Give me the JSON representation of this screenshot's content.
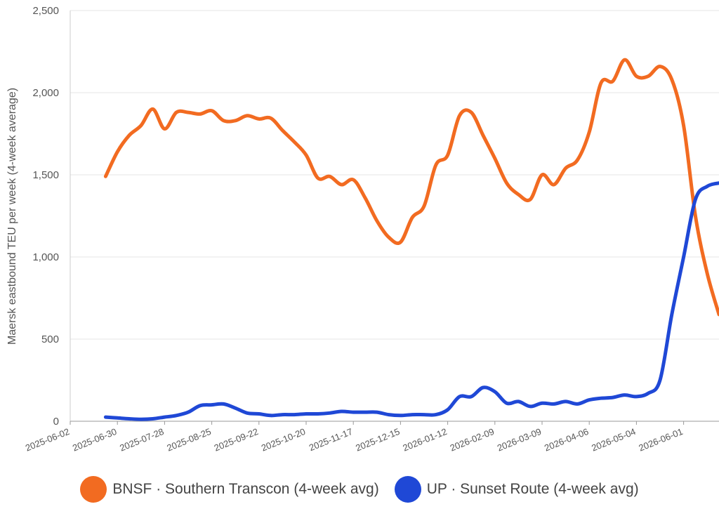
{
  "chart_data": {
    "type": "line",
    "title": "",
    "xlabel": "",
    "ylabel": "Maersk eastbound TEU per week (4-week average)",
    "ylim": [
      0,
      2500
    ],
    "yticks": [
      0,
      500,
      1000,
      1500,
      2000,
      2500
    ],
    "ytick_labels": [
      "0",
      "500",
      "1,000",
      "1,500",
      "2,000",
      "2,500"
    ],
    "xlim": [
      "2025-06-02",
      "2026-06-22"
    ],
    "xtick_labels": [
      "2025-06-02",
      "2025-06-30",
      "2025-07-28",
      "2025-08-25",
      "2025-09-22",
      "2025-10-20",
      "2025-11-17",
      "2025-12-15",
      "2026-01-12",
      "2026-02-09",
      "2026-03-09",
      "2026-04-06",
      "2026-05-04",
      "2026-06-01"
    ],
    "grid": true,
    "legend_position": "bottom",
    "series": [
      {
        "name": "BNSF · Southern Transcon (4-week avg)",
        "color": "#f26b21",
        "x": [
          "2025-06-23",
          "2025-06-30",
          "2025-07-07",
          "2025-07-14",
          "2025-07-21",
          "2025-07-28",
          "2025-08-04",
          "2025-08-11",
          "2025-08-18",
          "2025-08-25",
          "2025-09-01",
          "2025-09-08",
          "2025-09-15",
          "2025-09-22",
          "2025-09-29",
          "2025-10-06",
          "2025-10-13",
          "2025-10-20",
          "2025-10-27",
          "2025-11-03",
          "2025-11-10",
          "2025-11-17",
          "2025-11-24",
          "2025-12-01",
          "2025-12-08",
          "2025-12-15",
          "2025-12-22",
          "2025-12-29",
          "2026-01-05",
          "2026-01-12",
          "2026-01-19",
          "2026-01-26",
          "2026-02-02",
          "2026-02-09",
          "2026-02-16",
          "2026-02-23",
          "2026-03-02",
          "2026-03-09",
          "2026-03-16",
          "2026-03-23",
          "2026-03-30",
          "2026-04-06",
          "2026-04-13",
          "2026-04-20",
          "2026-04-27",
          "2026-05-04",
          "2026-05-11",
          "2026-05-18",
          "2026-05-25",
          "2026-06-01",
          "2026-06-08",
          "2026-06-15",
          "2026-06-22"
        ],
        "values": [
          1490,
          1640,
          1740,
          1800,
          1900,
          1780,
          1880,
          1880,
          1870,
          1890,
          1830,
          1830,
          1860,
          1840,
          1845,
          1770,
          1700,
          1620,
          1480,
          1490,
          1440,
          1470,
          1360,
          1220,
          1120,
          1090,
          1240,
          1310,
          1560,
          1620,
          1860,
          1880,
          1740,
          1600,
          1450,
          1380,
          1350,
          1500,
          1440,
          1540,
          1590,
          1760,
          2060,
          2070,
          2200,
          2100,
          2100,
          2160,
          2080,
          1800,
          1250,
          900,
          650
        ]
      },
      {
        "name": "UP · Sunset Route (4-week avg)",
        "color": "#1f48d6",
        "x": [
          "2025-06-23",
          "2025-06-30",
          "2025-07-07",
          "2025-07-14",
          "2025-07-21",
          "2025-07-28",
          "2025-08-04",
          "2025-08-11",
          "2025-08-18",
          "2025-08-25",
          "2025-09-01",
          "2025-09-08",
          "2025-09-15",
          "2025-09-22",
          "2025-09-29",
          "2025-10-06",
          "2025-10-13",
          "2025-10-20",
          "2025-10-27",
          "2025-11-03",
          "2025-11-10",
          "2025-11-17",
          "2025-11-24",
          "2025-12-01",
          "2025-12-08",
          "2025-12-15",
          "2025-12-22",
          "2025-12-29",
          "2026-01-05",
          "2026-01-12",
          "2026-01-19",
          "2026-01-26",
          "2026-02-02",
          "2026-02-09",
          "2026-02-16",
          "2026-02-23",
          "2026-03-02",
          "2026-03-09",
          "2026-03-16",
          "2026-03-23",
          "2026-03-30",
          "2026-04-06",
          "2026-04-13",
          "2026-04-20",
          "2026-04-27",
          "2026-05-04",
          "2026-05-11",
          "2026-05-18",
          "2026-05-25",
          "2026-06-01",
          "2026-06-08",
          "2026-06-15",
          "2026-06-22"
        ],
        "values": [
          25,
          20,
          15,
          12,
          15,
          25,
          35,
          55,
          95,
          100,
          105,
          80,
          50,
          45,
          35,
          40,
          40,
          45,
          45,
          50,
          60,
          55,
          55,
          55,
          40,
          35,
          40,
          40,
          40,
          70,
          150,
          150,
          205,
          180,
          110,
          120,
          90,
          110,
          105,
          120,
          105,
          130,
          140,
          145,
          160,
          150,
          170,
          250,
          650,
          1000,
          1350,
          1430,
          1450
        ]
      }
    ]
  }
}
